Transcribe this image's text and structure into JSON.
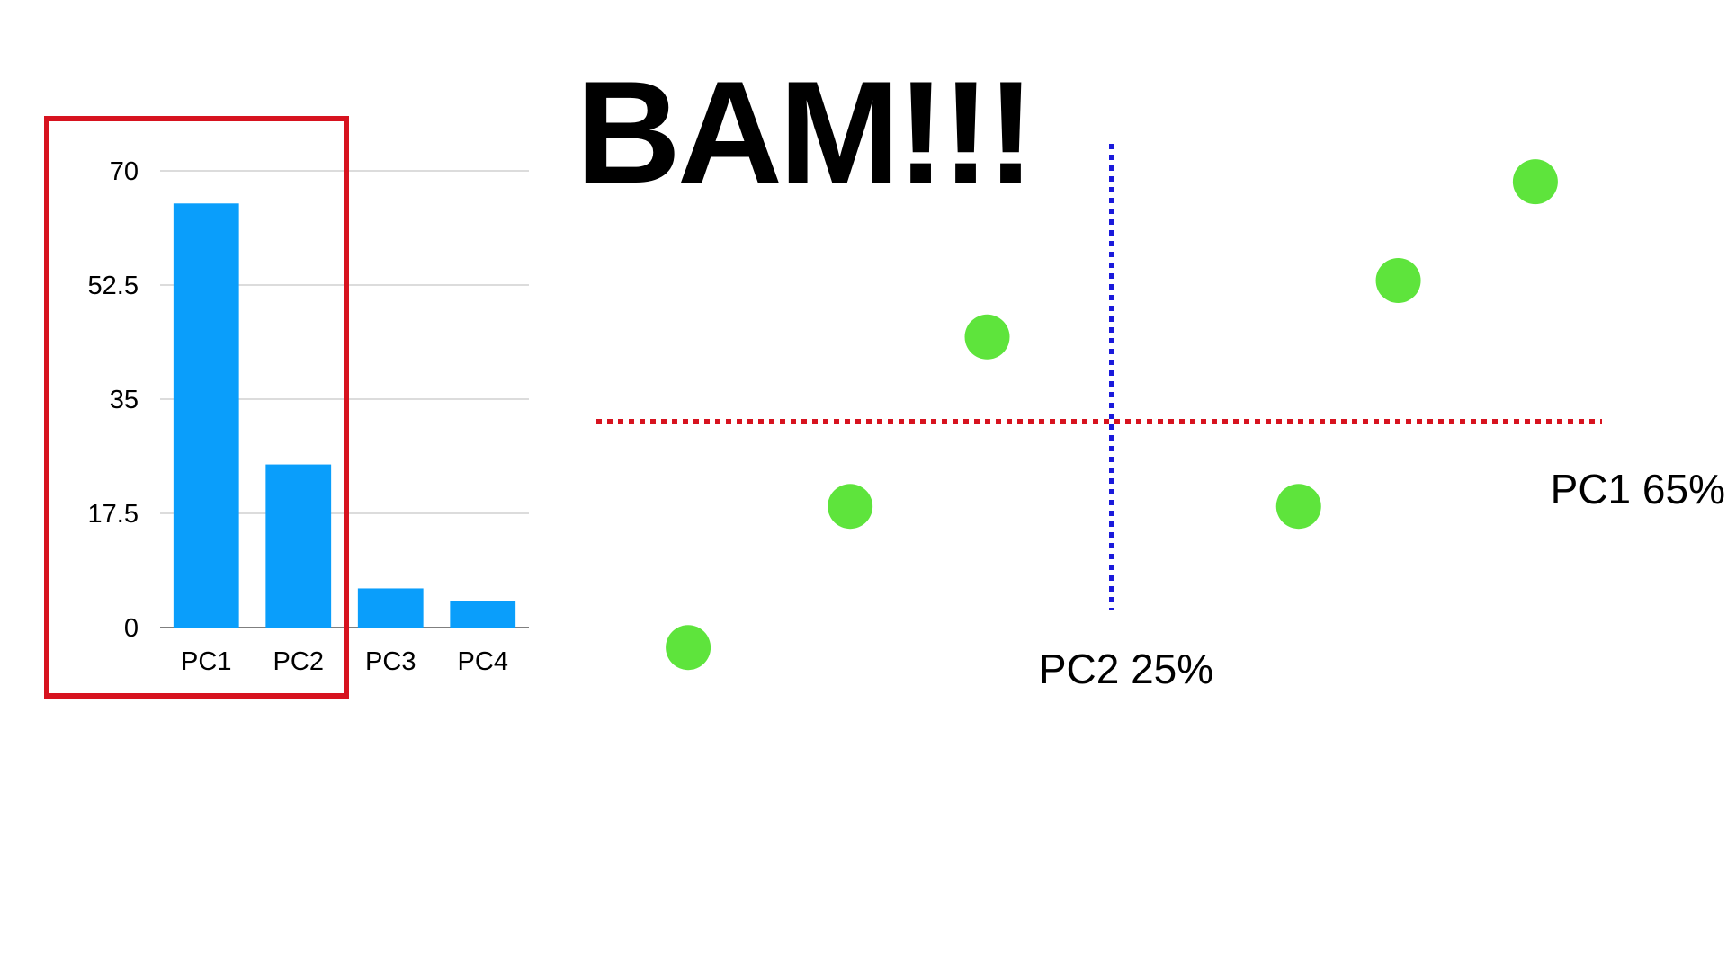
{
  "headline": "BAM!!!",
  "chart_data": [
    {
      "type": "bar",
      "categories": [
        "PC1",
        "PC2",
        "PC3",
        "PC4"
      ],
      "values": [
        65,
        25,
        6,
        4
      ],
      "ylim": [
        0,
        70
      ],
      "yticks": [
        0,
        17.5,
        35,
        52.5,
        70
      ],
      "ytick_labels": [
        "0",
        "17.5",
        "35",
        "52.5",
        "70"
      ],
      "grid": true,
      "bar_color": "#0a9efb",
      "highlight": {
        "categories": [
          "PC1",
          "PC2"
        ],
        "color": "#d7131f"
      }
    },
    {
      "type": "scatter",
      "xlabel": "PC1 65%",
      "ylabel": "PC2 25%",
      "xlim": [
        -4,
        4
      ],
      "ylim": [
        -2.2,
        3
      ],
      "x": [
        -3.4,
        -2.1,
        -1.0,
        1.5,
        2.3,
        3.4
      ],
      "y": [
        -1.6,
        -0.6,
        0.6,
        -0.6,
        1.0,
        1.7
      ],
      "point_color": "#5ee43c",
      "xaxis_line_color": "#d7131f",
      "yaxis_line_color": "#1a1adb"
    }
  ]
}
